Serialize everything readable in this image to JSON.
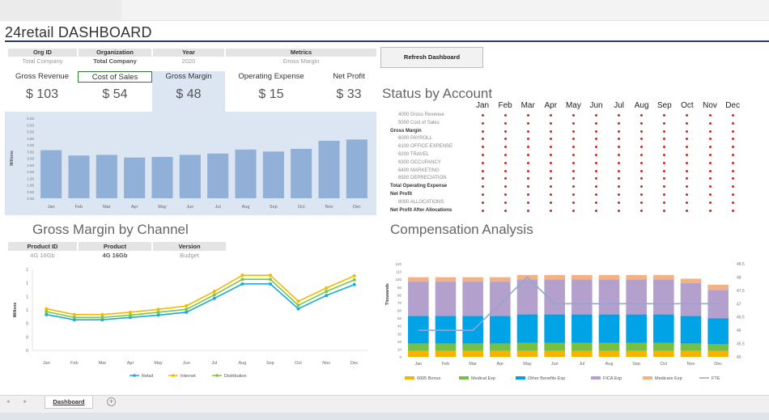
{
  "title": "24retail DASHBOARD",
  "filters": [
    {
      "header": "Org ID",
      "value": "Total Company",
      "bold": false
    },
    {
      "header": "Organization",
      "value": "Total Company",
      "bold": true
    },
    {
      "header": "Year",
      "value": "2020",
      "bold": false
    },
    {
      "header": "Metrics",
      "value": "Gross Margin",
      "bold": false
    }
  ],
  "refresh_label": "Refresh Dashboard",
  "kpis": [
    {
      "label": "Gross Revenue",
      "value": "$ 103"
    },
    {
      "label": "Cost of Sales",
      "value": "$ 54"
    },
    {
      "label": "Gross Margin",
      "value": "$ 48"
    },
    {
      "label": "Operating Expense",
      "value": "$ 15"
    },
    {
      "label": "Net Profit",
      "value": "$ 33"
    }
  ],
  "revenue_chart": {
    "type": "bar",
    "ylabel": "Millions",
    "yticks": [
      "0.00",
      "0.50",
      "1.00",
      "1.50",
      "2.00",
      "2.50",
      "3.00",
      "3.50",
      "4.00",
      "4.50",
      "5.00",
      "5.50",
      "6.00"
    ],
    "categories": [
      "Jan",
      "Feb",
      "Mar",
      "Apr",
      "May",
      "Jun",
      "Jul",
      "Aug",
      "Sep",
      "Oct",
      "Nov",
      "Dec"
    ],
    "values": [
      3.6,
      3.2,
      3.25,
      3.05,
      3.1,
      3.25,
      3.35,
      3.65,
      3.5,
      3.7,
      4.3,
      4.4
    ],
    "ylim": [
      0,
      6
    ],
    "color": "#91b0d8"
  },
  "status_title": "Status by Account",
  "status_months": [
    "Jan",
    "Feb",
    "Mar",
    "Apr",
    "May",
    "Jun",
    "Jul",
    "Aug",
    "Sep",
    "Oct",
    "Nov",
    "Dec"
  ],
  "status_rows": [
    {
      "label": "4000 Gross Revenue",
      "bold": false,
      "indent": 1
    },
    {
      "label": "5000 Cost of Sales",
      "bold": false,
      "indent": 1
    },
    {
      "label": "Gross Margin",
      "bold": true,
      "indent": 0
    },
    {
      "label": "6000 PAYROLL",
      "bold": false,
      "indent": 1
    },
    {
      "label": "6100 OFFICE EXPENSE",
      "bold": false,
      "indent": 1
    },
    {
      "label": "6200 TRAVEL",
      "bold": false,
      "indent": 1
    },
    {
      "label": "6300 OCCUPANCY",
      "bold": false,
      "indent": 1
    },
    {
      "label": "6400 MARKETING",
      "bold": false,
      "indent": 1
    },
    {
      "label": "6500 DEPRECIATION",
      "bold": false,
      "indent": 1
    },
    {
      "label": "Total Operating Expense",
      "bold": true,
      "indent": 0
    },
    {
      "label": "Net Profit",
      "bold": true,
      "indent": 0
    },
    {
      "label": "8000 ALLOCATIONS",
      "bold": false,
      "indent": 1
    },
    {
      "label": "Net Profit After Allocations",
      "bold": true,
      "indent": 0
    }
  ],
  "status_dot_color": "#e02020",
  "gm_title": "Gross Margin by Channel",
  "gm_filters": [
    {
      "header": "Product ID",
      "value": "4G 16Gb",
      "bold": false
    },
    {
      "header": "Product",
      "value": "4G 16Gb",
      "bold": true
    },
    {
      "header": "Version",
      "value": "Budget",
      "bold": false
    }
  ],
  "comp_title": "Compensation Analysis",
  "chart_data": [
    {
      "type": "line",
      "ylabel": "Millions",
      "yticks": [
        "0",
        "0",
        "0",
        "1",
        "1",
        "1",
        "1"
      ],
      "ylim": [
        0,
        1.4
      ],
      "categories": [
        "Jan",
        "Feb",
        "Mar",
        "Apr",
        "May",
        "Jun",
        "Jul",
        "Aug",
        "Sep",
        "Oct",
        "Nov",
        "Dec"
      ],
      "series": [
        {
          "name": "Retail",
          "color": "#1ea7e1",
          "values": [
            0.62,
            0.53,
            0.53,
            0.57,
            0.61,
            0.66,
            0.9,
            1.15,
            1.15,
            0.72,
            0.95,
            1.14
          ]
        },
        {
          "name": "Internet",
          "color": "#f5b800",
          "values": [
            0.72,
            0.62,
            0.62,
            0.66,
            0.71,
            0.77,
            1.02,
            1.3,
            1.3,
            0.85,
            1.08,
            1.29
          ]
        },
        {
          "name": "Distribution",
          "color": "#7ac943",
          "values": [
            0.67,
            0.57,
            0.57,
            0.61,
            0.66,
            0.71,
            0.96,
            1.23,
            1.23,
            0.78,
            1.02,
            1.22
          ]
        }
      ]
    },
    {
      "type": "bar",
      "stacked": true,
      "ylabel": "Thousands",
      "ylim": [
        0,
        125
      ],
      "yticks": [
        "0",
        "10",
        "20",
        "30",
        "40",
        "50",
        "60",
        "70",
        "80",
        "90",
        "100",
        "110",
        "120"
      ],
      "y2ticks": [
        "45",
        "45.5",
        "46",
        "46.5",
        "47",
        "47.5",
        "48",
        "48.5"
      ],
      "y2lim": [
        45,
        48.5
      ],
      "categories": [
        "Jan",
        "Feb",
        "Mar",
        "Apr",
        "May",
        "Jun",
        "Jul",
        "Aug",
        "Sep",
        "Oct",
        "Nov",
        "Dec"
      ],
      "series": [
        {
          "name": "6005 Bonus",
          "color": "#f5b400",
          "values": [
            8,
            8,
            8,
            8,
            8,
            8,
            8,
            8,
            8,
            8,
            8,
            8
          ]
        },
        {
          "name": "Medical Exp",
          "color": "#78c043",
          "values": [
            10,
            10,
            10,
            10,
            11,
            11,
            11,
            11,
            11,
            11,
            10,
            9
          ]
        },
        {
          "name": "Other Benefits Exp",
          "color": "#00a3e6",
          "values": [
            37,
            37,
            37,
            37,
            38,
            38,
            38,
            38,
            38,
            38,
            37,
            35
          ]
        },
        {
          "name": "FICA Exp",
          "color": "#b4a0cc",
          "values": [
            46,
            46,
            46,
            46,
            47,
            47,
            47,
            47,
            47,
            47,
            44,
            38
          ]
        },
        {
          "name": "Medicare Exp",
          "color": "#f4b183",
          "values": [
            6,
            6,
            6,
            6,
            6,
            6,
            6,
            6,
            6,
            6,
            6,
            7
          ]
        }
      ],
      "line_series": {
        "name": "FTE",
        "color": "#8ea6d8",
        "values": [
          46,
          46,
          46,
          47,
          48,
          47,
          47,
          47,
          47,
          47,
          47,
          47
        ]
      }
    }
  ],
  "sheet_tab": "Dashboard"
}
